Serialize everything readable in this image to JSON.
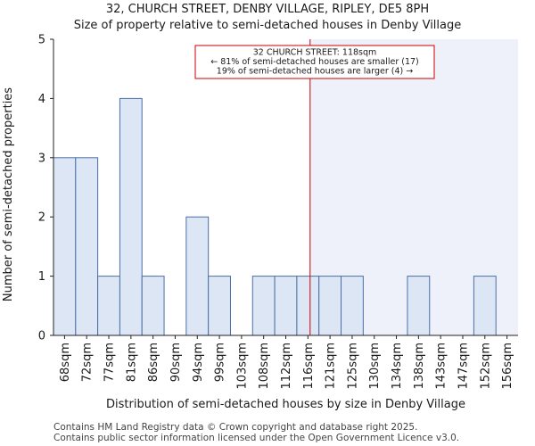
{
  "header": {
    "line1": "32, CHURCH STREET, DENBY VILLAGE, RIPLEY, DE5 8PH",
    "line2": "Size of property relative to semi-detached houses in Denby Village"
  },
  "footer": {
    "line1": "Contains HM Land Registry data © Crown copyright and database right 2025.",
    "line2": "Contains public sector information licensed under the Open Government Licence v3.0."
  },
  "chart_data": {
    "type": "bar",
    "title": "Size of property relative to semi-detached houses in Denby Village",
    "xlabel": "Distribution of semi-detached houses by size in Denby Village",
    "ylabel": "Number of semi-detached properties",
    "categories": [
      "68sqm",
      "72sqm",
      "77sqm",
      "81sqm",
      "86sqm",
      "90sqm",
      "94sqm",
      "99sqm",
      "103sqm",
      "108sqm",
      "112sqm",
      "116sqm",
      "121sqm",
      "125sqm",
      "130sqm",
      "134sqm",
      "138sqm",
      "143sqm",
      "147sqm",
      "152sqm",
      "156sqm"
    ],
    "values": [
      3,
      3,
      1,
      4,
      1,
      0,
      2,
      1,
      0,
      1,
      1,
      1,
      1,
      1,
      0,
      0,
      1,
      0,
      0,
      1,
      0
    ],
    "ylim": [
      0,
      5
    ],
    "yticks": [
      0,
      1,
      2,
      3,
      4,
      5
    ],
    "marker": {
      "value_sqm": 118,
      "category_index": 11.6,
      "color": "#cc0000",
      "annotation": [
        "32 CHURCH STREET: 118sqm",
        "← 81% of semi-detached houses are smaller (17)",
        "19% of semi-detached houses are larger (4) →"
      ]
    },
    "colors": {
      "bar_fill": "#dde6f4",
      "bar_stroke": "#4a6fa5",
      "highlight_region": "#eef1fa"
    }
  }
}
